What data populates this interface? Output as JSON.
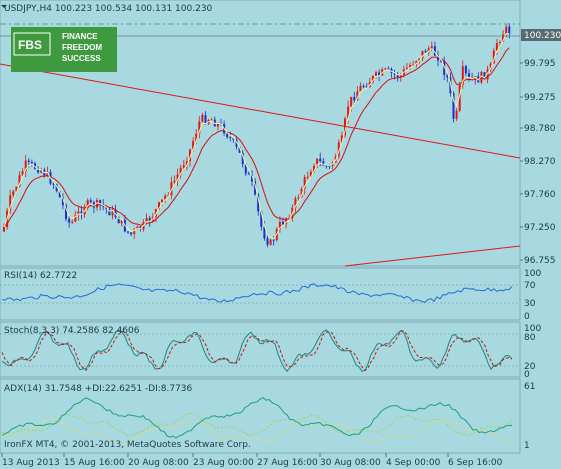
{
  "window": {
    "symbol_header": "USDJPY,H4  100.223 100.534 100.131 100.230"
  },
  "logo": {
    "brand": "FBS",
    "line1": "FINANCE",
    "line2": "FREEDOM",
    "line3": "SUCCESS"
  },
  "main_panel": {
    "price_axis": [
      "100.230",
      "99.795",
      "99.275",
      "98.780",
      "98.270",
      "97.760",
      "97.250",
      "96.755"
    ],
    "price_range": [
      96.65,
      100.75
    ],
    "current_price": "100.230"
  },
  "rsi_panel": {
    "label": "RSI(14) 62.7722",
    "levels": [
      "100",
      "70",
      "30",
      "0"
    ]
  },
  "stoch_panel": {
    "label": "Stoch(8,3,3) 74.2586 82.4606",
    "levels": [
      "100",
      "80",
      "20",
      "0"
    ]
  },
  "adx_panel": {
    "label": "ADX(14) 31.7548 +DI:22.6251 -DI:8.7736",
    "levels": [
      "61",
      "1"
    ],
    "copyright": "IronFX MT4, © 2001-2013, MetaQuotes Software Corp."
  },
  "time_axis": [
    "13 Aug 2013",
    "15 Aug 16:00",
    "20 Aug 08:00",
    "23 Aug 00:00",
    "27 Aug 16:00",
    "30 Aug 08:00",
    "4 Sep 00:00",
    "6 Sep 16:00"
  ],
  "colors": {
    "background": "#a8d8e0",
    "bull_candle": "#e01818",
    "bear_candle": "#1a2fd0",
    "ma_fast": "#f4f7a0",
    "ma_slow": "#d41010",
    "trendline": "#e01818",
    "rsi_line": "#1e6fd8",
    "stoch_main": "#1a8a7a",
    "stoch_signal": "#c81818",
    "adx_line": "#1ea080",
    "plus_di": "#9ad84a",
    "minus_di": "#e8e060",
    "logo_bg": "#3f9a3f"
  }
}
